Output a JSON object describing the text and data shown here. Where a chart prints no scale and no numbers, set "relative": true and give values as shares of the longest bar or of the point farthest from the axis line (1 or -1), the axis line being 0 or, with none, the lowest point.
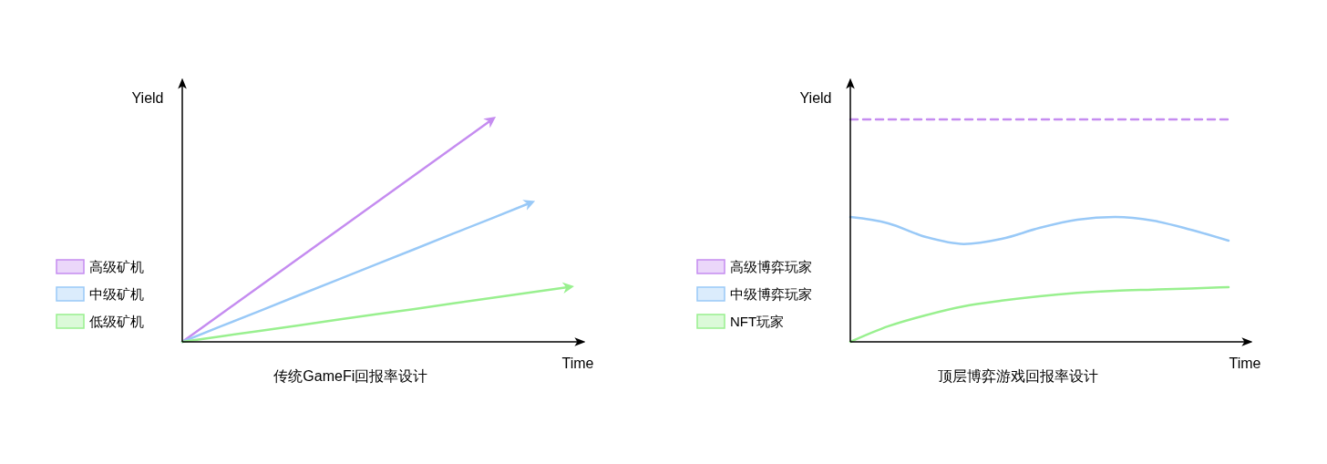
{
  "chart_data": [
    {
      "type": "line",
      "title": "传统GameFi回报率设计",
      "xlabel": "Time",
      "ylabel": "Yield",
      "relative": true,
      "legend": "left",
      "grid": false,
      "marker": "none",
      "categories": [
        null,
        null,
        null,
        null,
        null,
        null,
        null,
        null,
        null,
        null,
        null
      ],
      "series": [
        {
          "name": "高级矿机",
          "color": "#c58cf0",
          "values": [
            0,
            0.125,
            0.25,
            0.375,
            0.5,
            0.625,
            0.75,
            0.875,
            1,
            null,
            null
          ]
        },
        {
          "name": "中级矿机",
          "color": "#99c9f7",
          "values": [
            0,
            0.07,
            0.139,
            0.209,
            0.278,
            0.348,
            0.417,
            0.487,
            0.556,
            0.626,
            null
          ]
        },
        {
          "name": "低级矿机",
          "color": "#99f08f",
          "values": [
            0,
            0.025,
            0.049,
            0.074,
            0.099,
            0.124,
            0.148,
            0.173,
            0.198,
            0.222,
            0.247
          ]
        }
      ]
    },
    {
      "type": "line",
      "title": "顶层博弈游戏回报率设计",
      "xlabel": "Time",
      "ylabel": "Yield",
      "relative": true,
      "legend": "left",
      "grid": false,
      "marker": "none",
      "categories": [
        null,
        null,
        null,
        null,
        null,
        null,
        null,
        null,
        null,
        null,
        null
      ],
      "series": [
        {
          "name": "高级博弈玩家",
          "color": "#c58cf0",
          "line_style": "dashed",
          "values": [
            1,
            1,
            1,
            1,
            1,
            1,
            1,
            1,
            1,
            1,
            1
          ]
        },
        {
          "name": "中级博弈玩家",
          "color": "#99c9f7",
          "values": [
            0.561,
            0.533,
            0.471,
            0.44,
            0.463,
            0.512,
            0.549,
            0.561,
            0.545,
            0.504,
            0.455
          ]
        },
        {
          "name": "NFT玩家",
          "color": "#99f08f",
          "values": [
            0,
            0.07,
            0.12,
            0.16,
            0.185,
            0.205,
            0.22,
            0.23,
            0.235,
            0.24,
            0.246
          ]
        }
      ]
    }
  ]
}
